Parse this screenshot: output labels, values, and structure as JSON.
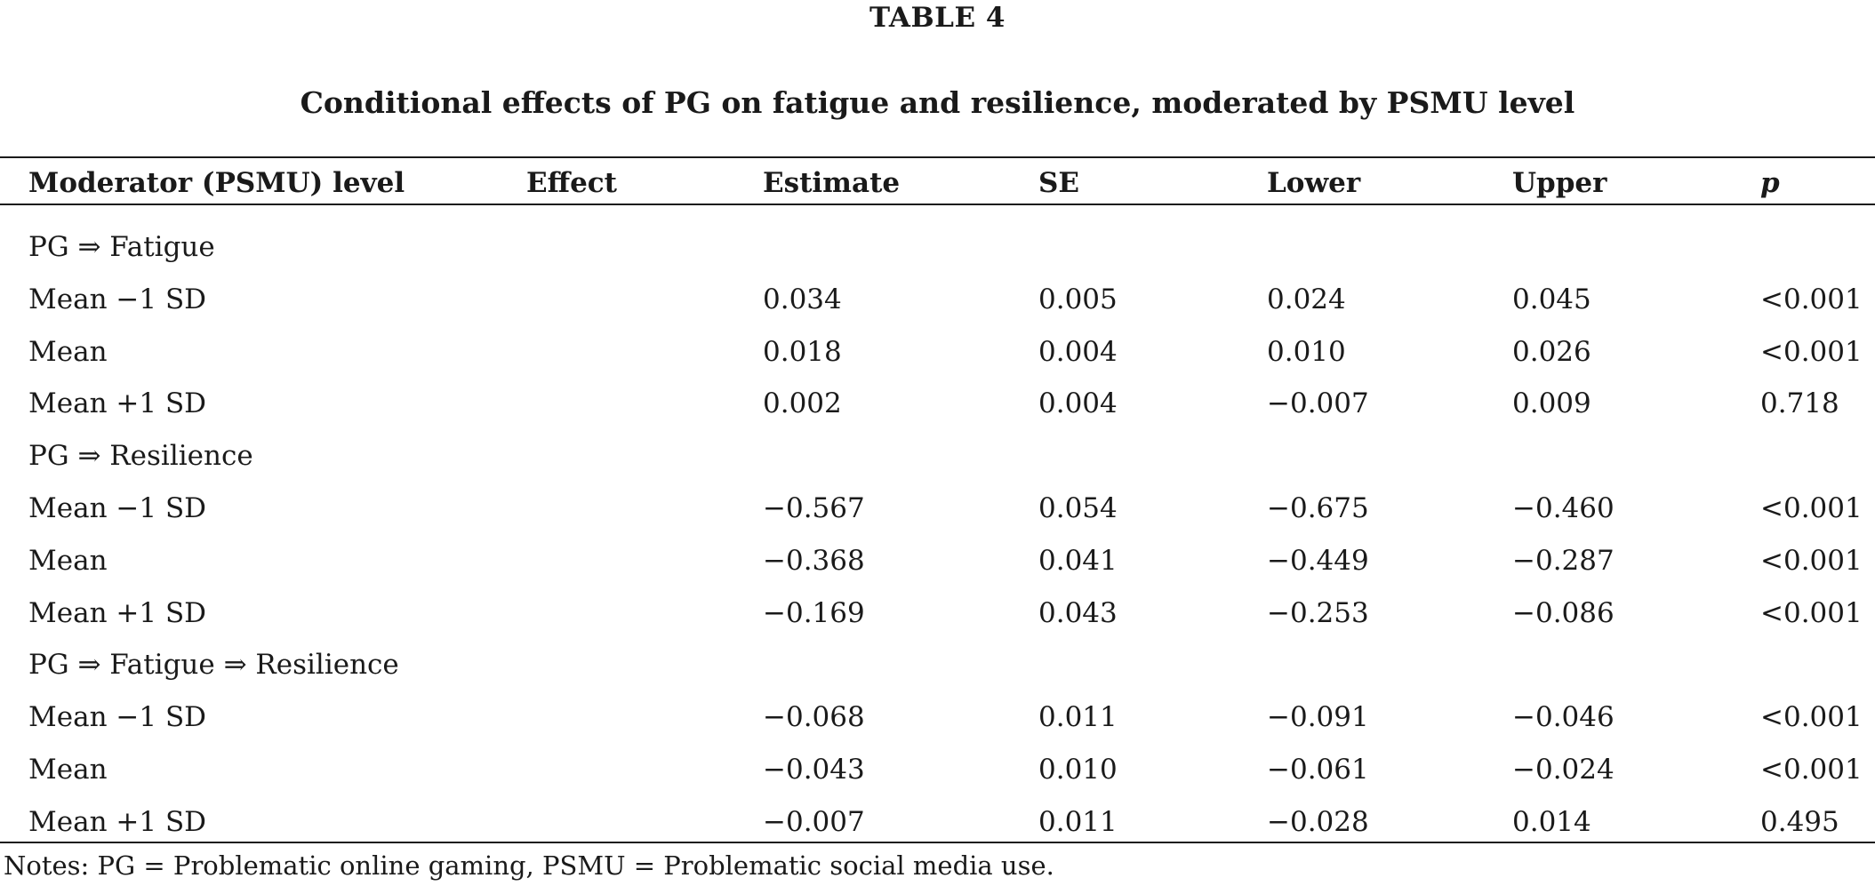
{
  "table": {
    "label": "TABLE 4",
    "title": "Conditional effects of PG on fatigue and resilience, moderated by PSMU level",
    "headers": [
      "Moderator (PSMU) level",
      "Effect",
      "Estimate",
      "SE",
      "Lower",
      "Upper",
      "p"
    ],
    "groups": [
      {
        "name": "PG ⇒ Fatigue",
        "rows": [
          {
            "level": "Mean −1 SD",
            "effect": "",
            "estimate": "0.034",
            "se": "0.005",
            "lower": "0.024",
            "upper": "0.045",
            "p": "<0.001"
          },
          {
            "level": "Mean",
            "effect": "",
            "estimate": "0.018",
            "se": "0.004",
            "lower": "0.010",
            "upper": "0.026",
            "p": "<0.001"
          },
          {
            "level": "Mean +1 SD",
            "effect": "",
            "estimate": "0.002",
            "se": "0.004",
            "lower": "−0.007",
            "upper": "0.009",
            "p": "0.718"
          }
        ]
      },
      {
        "name": "PG ⇒ Resilience",
        "rows": [
          {
            "level": "Mean −1 SD",
            "effect": "",
            "estimate": "−0.567",
            "se": "0.054",
            "lower": "−0.675",
            "upper": "−0.460",
            "p": "<0.001"
          },
          {
            "level": "Mean",
            "effect": "",
            "estimate": "−0.368",
            "se": "0.041",
            "lower": "−0.449",
            "upper": "−0.287",
            "p": "<0.001"
          },
          {
            "level": "Mean +1 SD",
            "effect": "",
            "estimate": "−0.169",
            "se": "0.043",
            "lower": "−0.253",
            "upper": "−0.086",
            "p": "<0.001"
          }
        ]
      },
      {
        "name": "PG ⇒ Fatigue ⇒ Resilience",
        "rows": [
          {
            "level": "Mean −1 SD",
            "effect": "",
            "estimate": "−0.068",
            "se": "0.011",
            "lower": "−0.091",
            "upper": "−0.046",
            "p": "<0.001"
          },
          {
            "level": "Mean",
            "effect": "",
            "estimate": "−0.043",
            "se": "0.010",
            "lower": "−0.061",
            "upper": "−0.024",
            "p": "<0.001"
          },
          {
            "level": "Mean +1 SD",
            "effect": "",
            "estimate": "−0.007",
            "se": "0.011",
            "lower": "−0.028",
            "upper": "0.014",
            "p": "0.495"
          }
        ]
      }
    ],
    "notes": "Notes: PG = Problematic online gaming, PSMU = Problematic social media use."
  }
}
